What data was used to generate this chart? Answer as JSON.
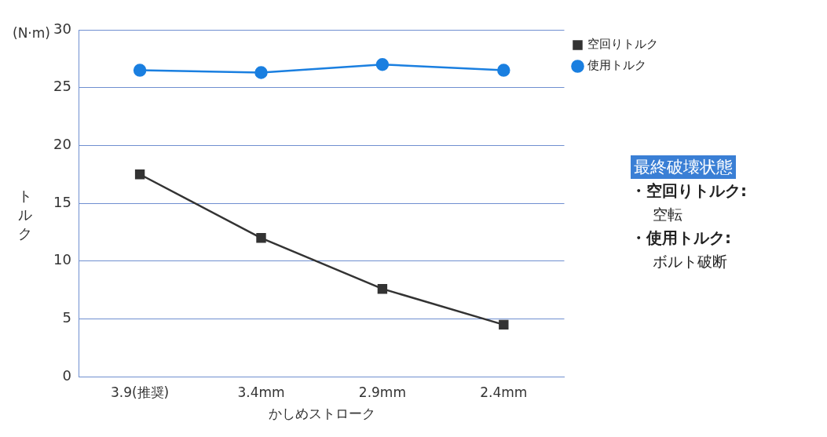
{
  "chart_data": {
    "type": "line",
    "categories": [
      "3.9(推奨)",
      "3.4mm",
      "2.9mm",
      "2.4mm"
    ],
    "series": [
      {
        "name": "空回りトルク",
        "color": "#333333",
        "marker": "square",
        "values": [
          17.5,
          12.0,
          7.6,
          4.5
        ]
      },
      {
        "name": "使用トルク",
        "color": "#1a7fe0",
        "marker": "circle",
        "values": [
          26.5,
          26.3,
          27.0,
          26.5
        ]
      }
    ],
    "xlabel": "かしめストローク",
    "ylabel": "トルク",
    "ylim": [
      0,
      30
    ],
    "yticks": [
      0,
      5,
      10,
      15,
      20,
      25,
      30
    ],
    "grid": "y",
    "legend": "top right",
    "line_style": "solid",
    "annotations": [
      "(N·m)",
      "最終破壊状態",
      "・空回りトルク:",
      "空転",
      "・使用トルク:",
      "ボルト破断"
    ]
  }
}
